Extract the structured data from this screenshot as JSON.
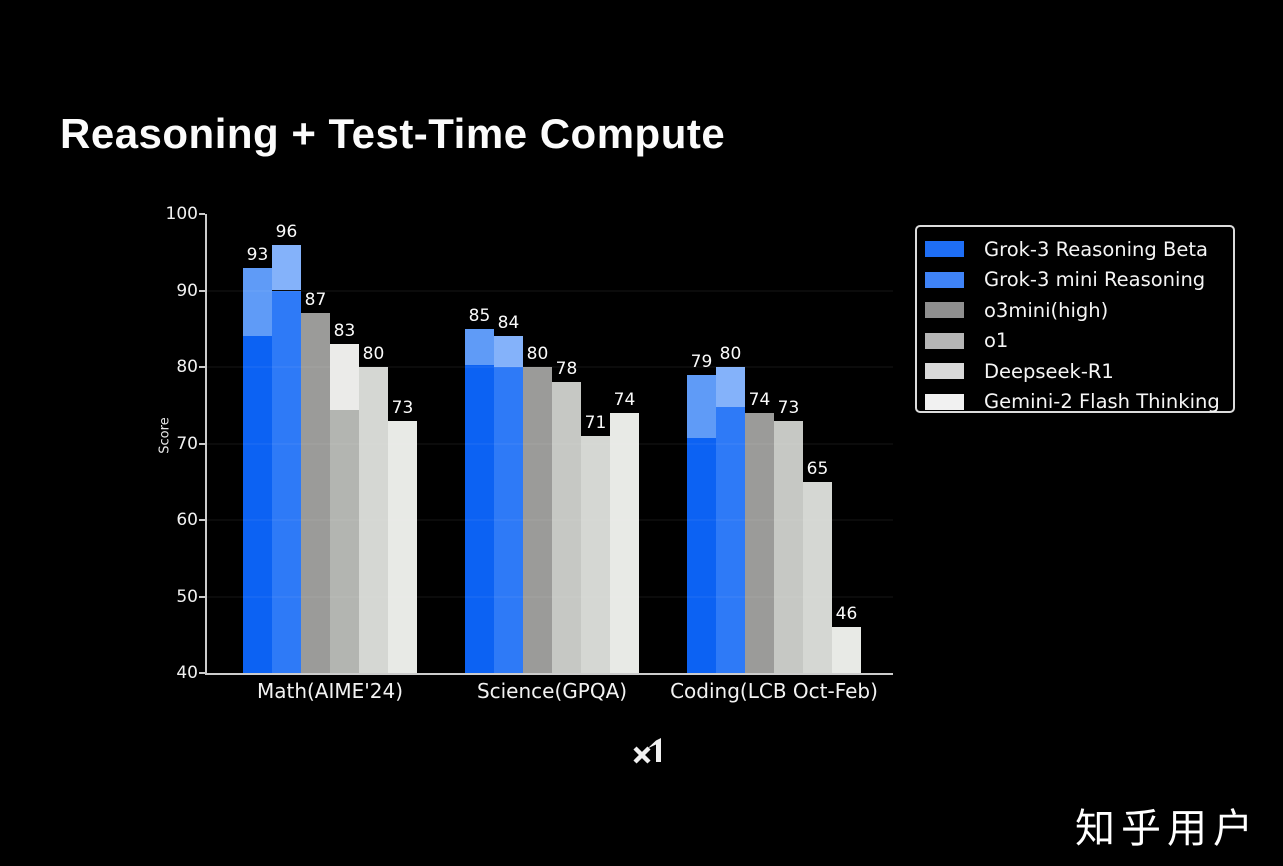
{
  "page": {
    "background": "#000000",
    "watermark": "知乎用户",
    "logo_text": "xI"
  },
  "header": {
    "title": "Reasoning + Test-Time Compute"
  },
  "chart_data": {
    "type": "bar",
    "title": "Reasoning + Test-Time Compute",
    "xlabel": "",
    "ylabel": "Score",
    "ylim": [
      40,
      100
    ],
    "yticks": [
      40,
      50,
      60,
      70,
      80,
      90,
      100
    ],
    "grid": "faint horizontal lines at 50-90, drawn over bars",
    "legend_position": "upper right, boxed",
    "categories": [
      "Math(AIME'24)",
      "Science(GPQA)",
      "Coding(LCB Oct-Feb)"
    ],
    "series": [
      {
        "name": "Grok-3 Reasoning Beta",
        "values": [
          93,
          85,
          79
        ],
        "base_values": [
          84,
          80.2,
          70.7
        ],
        "segment_note": "lighter top segment = gain from test-time compute",
        "solid_color": "#0c62f3",
        "light_color": "#5f9bf7",
        "legend_color": "#1e6ef5"
      },
      {
        "name": "Grok-3 mini Reasoning",
        "values": [
          96,
          84,
          80
        ],
        "base_values": [
          90,
          80,
          74.8
        ],
        "solid_color": "#2e7af7",
        "light_color": "#84b2fa",
        "legend_color": "#3f83f7"
      },
      {
        "name": "o3mini(high)",
        "values": [
          87,
          80,
          74
        ],
        "base_values": [
          87,
          80,
          74
        ],
        "solid_color": "#9b9b99",
        "legend_color": "#8f8f8f"
      },
      {
        "name": "o1",
        "values": [
          83,
          78,
          73
        ],
        "base_values": [
          74.4,
          78,
          73
        ],
        "solid_color": "#c6c8c4",
        "per_bar_solid": [
          "#b3b5b1",
          "#c6c8c4",
          "#c6c8c4"
        ],
        "light_color": "#ebebe9",
        "legend_color": "#b5b5b5"
      },
      {
        "name": "Deepseek-R1",
        "values": [
          80,
          71,
          65
        ],
        "base_values": [
          80,
          71,
          65
        ],
        "solid_color": "#d5d7d3",
        "legend_color": "#d9d9d9"
      },
      {
        "name": "Gemini-2 Flash Thinking",
        "values": [
          73,
          74,
          46
        ],
        "base_values": [
          73,
          74,
          46
        ],
        "solid_color": "#e8eae6",
        "legend_color": "#f1f1f1"
      }
    ],
    "colors": {
      "background": "#000000",
      "axis": "#cccccc",
      "tick_text": "#f0f0f0",
      "bar_label_text": "#fafafa"
    }
  }
}
